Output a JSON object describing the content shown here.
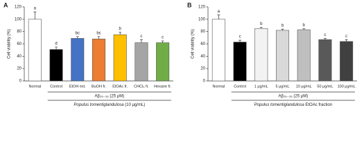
{
  "chart_data": [
    {
      "type": "bar",
      "panel_label": "A",
      "ylabel": "Cell viability (%)",
      "categories": [
        "Normal",
        "Control",
        "EtOH ext.",
        "BuOH fr.",
        "EtOAc fr.",
        "CHCl₃ fr.",
        "Hexane fr."
      ],
      "values": [
        100,
        51,
        69,
        68,
        75,
        62,
        62
      ],
      "errors": [
        12,
        4,
        3,
        4,
        4,
        5,
        3
      ],
      "letters": [
        "a",
        "d",
        "bc",
        "bc",
        "b",
        "c",
        "c"
      ],
      "colors": [
        "#ffffff",
        "#000000",
        "#4472c4",
        "#ed7d31",
        "#ffc000",
        "#a5a5a5",
        "#70ad47"
      ],
      "treatment_label": "Aβ₂₅₋₃₅ (25 μM)",
      "extract_species": "Populus tomentiglandulosa",
      "extract_detail": "(10 μg/mL)",
      "ylim": [
        0,
        120
      ],
      "yticks": [
        0,
        20,
        40,
        60,
        80,
        100,
        120
      ]
    },
    {
      "type": "bar",
      "panel_label": "B",
      "ylabel": "Cell viability (%)",
      "categories": [
        "Normal",
        "Control",
        "1 μg/mL",
        "5 μg/mL",
        "10 μg/mL",
        "50 μg/mL",
        "100 μg/mL"
      ],
      "values": [
        100,
        63,
        85,
        82,
        83,
        67,
        64
      ],
      "errors": [
        7,
        3,
        2,
        2,
        2,
        2,
        3
      ],
      "letters": [
        "a",
        "c",
        "b",
        "b",
        "b",
        "c",
        "c"
      ],
      "colors": [
        "#ffffff",
        "#000000",
        "#f2f2f2",
        "#d9d9d9",
        "#bfbfbf",
        "#595959",
        "#404040"
      ],
      "treatment_label": "Aβ₂₅₋₃₅ (25 μM)",
      "extract_species": "Populus tomentiglandulosa",
      "extract_detail": "EtOAc fraction",
      "ylim": [
        0,
        120
      ],
      "yticks": [
        0,
        20,
        40,
        60,
        80,
        100,
        120
      ]
    }
  ]
}
